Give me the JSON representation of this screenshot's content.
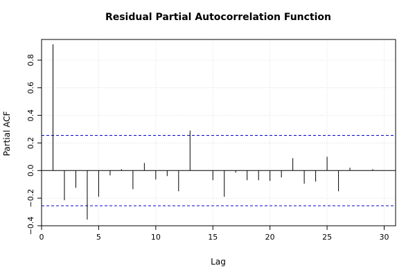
{
  "chart_data": {
    "type": "bar",
    "title": "Residual Partial Autocorrelation Function",
    "xlabel": "Lag",
    "ylabel": "Partial ACF",
    "xlim": [
      0,
      31
    ],
    "ylim": [
      -0.4,
      0.95
    ],
    "x_ticks": [
      0,
      5,
      10,
      15,
      20,
      25,
      30
    ],
    "y_ticks": [
      -0.4,
      -0.2,
      0.0,
      0.2,
      0.4,
      0.6,
      0.8
    ],
    "x_tick_labels": [
      "0",
      "5",
      "10",
      "15",
      "20",
      "25",
      "30"
    ],
    "y_tick_labels": [
      "−0.4",
      "−0.2",
      "0.0",
      "0.2",
      "0.4",
      "0.6",
      "0.8"
    ],
    "confidence_bound": 0.255,
    "grid": true,
    "lags": [
      1,
      2,
      3,
      4,
      5,
      6,
      7,
      8,
      9,
      10,
      11,
      12,
      13,
      14,
      15,
      16,
      17,
      18,
      19,
      20,
      21,
      22,
      23,
      24,
      25,
      26,
      27,
      28,
      29,
      30
    ],
    "values": [
      0.915,
      -0.215,
      -0.125,
      -0.355,
      -0.19,
      -0.035,
      0.01,
      -0.135,
      0.055,
      -0.065,
      -0.04,
      -0.15,
      0.29,
      0.0,
      -0.07,
      -0.19,
      -0.015,
      -0.07,
      -0.07,
      -0.075,
      -0.05,
      0.09,
      -0.095,
      -0.08,
      0.1,
      -0.15,
      0.02,
      0.0,
      0.01,
      0.0
    ],
    "colors": {
      "bars": "#000000",
      "bounds": "#0000cc",
      "grid": "#dcdcdc",
      "zero": "#000000"
    }
  }
}
